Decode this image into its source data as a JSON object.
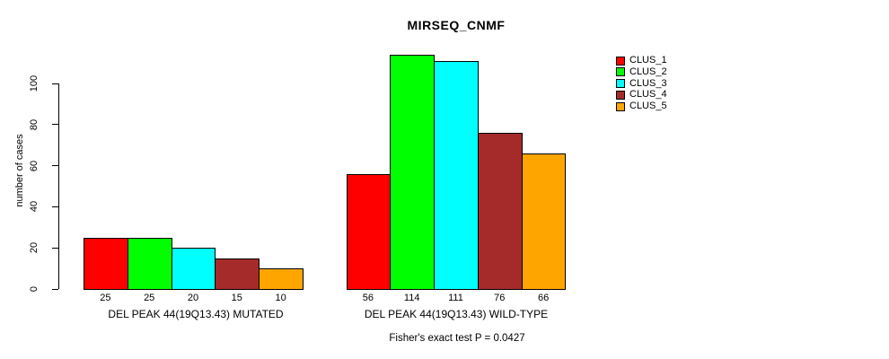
{
  "title": "MIRSEQ_CNMF",
  "chart_data": {
    "type": "bar",
    "title": "MIRSEQ_CNMF",
    "ylabel": "number of cases",
    "xlabel": "",
    "yticks": [
      0,
      20,
      40,
      60,
      80,
      100
    ],
    "ylim": [
      0,
      115
    ],
    "grid": false,
    "legend": {
      "position": "right",
      "entries": [
        {
          "label": "CLUS_1",
          "color": "#FF0000"
        },
        {
          "label": "CLUS_2",
          "color": "#00FF00"
        },
        {
          "label": "CLUS_3",
          "color": "#00FFFF"
        },
        {
          "label": "CLUS_4",
          "color": "#A52A2A"
        },
        {
          "label": "CLUS_5",
          "color": "#FFA500"
        }
      ]
    },
    "categories": [
      "CLUS_1",
      "CLUS_2",
      "CLUS_3",
      "CLUS_4",
      "CLUS_5"
    ],
    "groups": [
      {
        "label": "DEL PEAK 44(19Q13.43) MUTATED",
        "values": [
          25,
          25,
          20,
          15,
          10
        ]
      },
      {
        "label": "DEL PEAK 44(19Q13.43) WILD-TYPE",
        "values": [
          56,
          114,
          111,
          76,
          66
        ]
      }
    ],
    "annotation": "Fisher's exact test P = 0.0427"
  }
}
